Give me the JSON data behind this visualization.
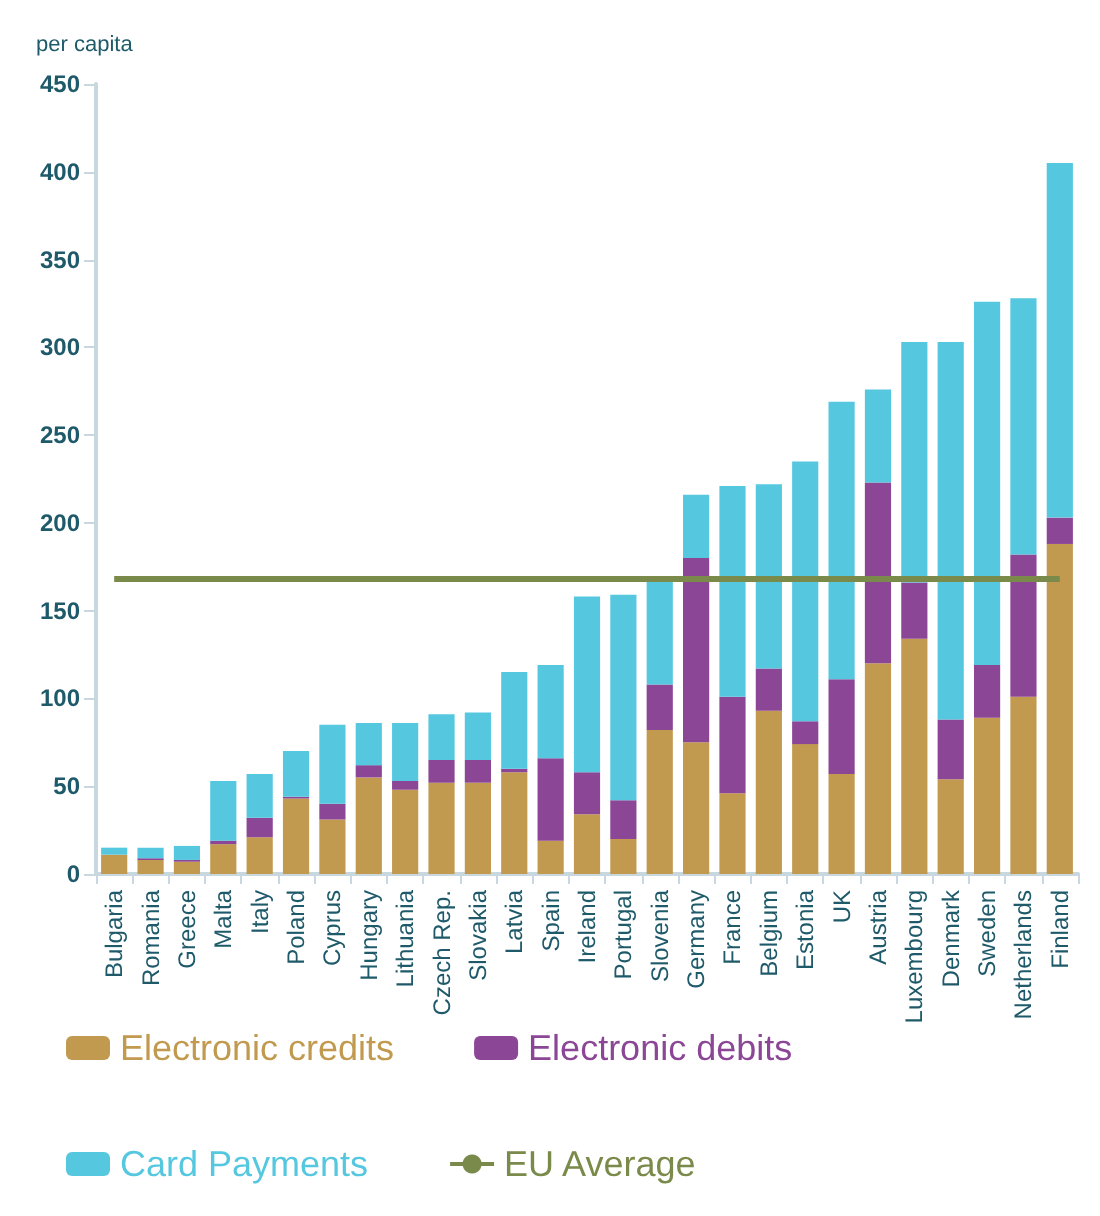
{
  "chart_data": {
    "type": "bar",
    "stacked": true,
    "ylabel": "per capita",
    "categories": [
      "Bulgaria",
      "Romania",
      "Greece",
      "Malta",
      "Italy",
      "Poland",
      "Cyprus",
      "Hungary",
      "Lithuania",
      "Czech Rep.",
      "Slovakia",
      "Latvia",
      "Spain",
      "Ireland",
      "Portugal",
      "Slovenia",
      "Germany",
      "France",
      "Belgium",
      "Estonia",
      "UK",
      "Austria",
      "Luxembourg",
      "Denmark",
      "Sweden",
      "Netherlands",
      "Finland"
    ],
    "series": [
      {
        "name": "Electronic credits",
        "color": "#c19a50",
        "values": [
          11,
          8,
          7,
          17,
          21,
          43,
          31,
          55,
          48,
          52,
          52,
          58,
          19,
          34,
          20,
          82,
          75,
          46,
          93,
          74,
          57,
          120,
          134,
          54,
          89,
          101,
          188
        ]
      },
      {
        "name": "Electronic debits",
        "color": "#8b4696",
        "values": [
          0,
          1,
          1,
          2,
          11,
          1,
          9,
          7,
          5,
          13,
          13,
          2,
          47,
          24,
          22,
          26,
          105,
          55,
          24,
          13,
          54,
          103,
          32,
          34,
          30,
          81,
          15
        ]
      },
      {
        "name": "Card Payments",
        "color": "#55c8e0",
        "values": [
          4,
          6,
          8,
          34,
          25,
          26,
          45,
          24,
          33,
          26,
          27,
          55,
          53,
          100,
          117,
          59,
          36,
          120,
          105,
          148,
          158,
          53,
          137,
          215,
          207,
          146,
          202
        ]
      },
      {
        "name": "EU Average",
        "type": "line",
        "color": "#7a8a4a",
        "values": [
          168,
          168,
          168,
          168,
          168,
          168,
          168,
          168,
          168,
          168,
          168,
          168,
          168,
          168,
          168,
          168,
          168,
          168,
          168,
          168,
          168,
          168,
          168,
          168,
          168,
          168,
          168
        ]
      }
    ],
    "ylim": [
      0,
      450
    ],
    "yticks": [
      0,
      50,
      100,
      150,
      200,
      250,
      300,
      350,
      400,
      450
    ],
    "grid": false,
    "legend": "bottom",
    "marker": "none",
    "line_style": "solid"
  }
}
